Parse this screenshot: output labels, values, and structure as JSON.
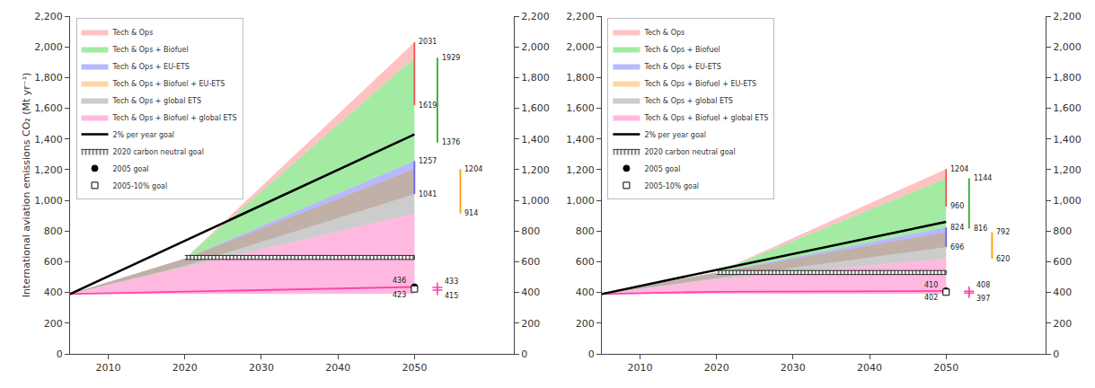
{
  "chart_data": [
    {
      "type": "area",
      "ylabel": "International aviation emissions CO₂ (Mt yr⁻¹)",
      "xlim": [
        2005,
        2063
      ],
      "xticks": [
        2010,
        2020,
        2030,
        2040,
        2050
      ],
      "ylim": [
        0,
        2200
      ],
      "yticks": [
        0,
        200,
        400,
        600,
        800,
        {
          "value": 1000,
          "label": "1,000"
        },
        {
          "value": 1200,
          "label": "1,200"
        },
        {
          "value": 1400,
          "label": "1,400"
        },
        {
          "value": 1600,
          "label": "1,600"
        },
        {
          "value": 1800,
          "label": "1,800"
        },
        {
          "value": 2000,
          "label": "2,000"
        },
        {
          "value": 2200,
          "label": "2,200"
        }
      ],
      "y2lim": [
        0,
        2200
      ],
      "y2ticks": [
        0,
        200,
        400,
        600,
        800,
        {
          "value": 1000,
          "label": "1,000"
        },
        {
          "value": 1200,
          "label": "1,200"
        },
        {
          "value": 1400,
          "label": "1,400"
        },
        {
          "value": 1600,
          "label": "1,600"
        },
        {
          "value": 1800,
          "label": "1,800"
        },
        {
          "value": 2000,
          "label": "2,000"
        },
        {
          "value": 2200,
          "label": "2,200"
        }
      ],
      "grid": false,
      "legend": "upper left",
      "series": [
        {
          "name": "Tech & Ops",
          "type": "band",
          "color": "#FF9999",
          "x": [
            2005,
            2020,
            2050
          ],
          "lower": [
            390,
            620,
            1929
          ],
          "values": [
            390,
            620,
            2031
          ]
        },
        {
          "name": "Tech & Ops + Biofuel",
          "type": "band",
          "color": "#66DD66",
          "x": [
            2005,
            2020,
            2050
          ],
          "lower": [
            390,
            620,
            1257
          ],
          "values": [
            390,
            620,
            1929
          ]
        },
        {
          "name": "Tech & Ops + EU-ETS",
          "type": "band",
          "color": "#8888FF",
          "x": [
            2005,
            2020,
            2050
          ],
          "lower": [
            390,
            574.75,
            1041
          ],
          "values": [
            390,
            620,
            1257
          ]
        },
        {
          "name": "Tech & Ops + Biofuel + EU-ETS",
          "type": "band",
          "color": "#FFBB66",
          "x": [
            2005,
            2020,
            2050
          ],
          "lower": [
            390,
            620,
            1204
          ],
          "values": [
            390,
            574.75,
            1041
          ]
        },
        {
          "name": "Tech & Ops + global ETS",
          "type": "band",
          "color": "#AAAAAA",
          "x": [
            2005,
            2020,
            2050
          ],
          "lower": [
            390,
            562.65,
            914
          ],
          "values": [
            390,
            620,
            1204
          ]
        },
        {
          "name": "Tech & Ops + Biofuel + global ETS",
          "type": "band",
          "color": "#FF88CC",
          "x": [
            2005,
            2020,
            2050
          ],
          "lower": [
            390,
            390,
            390
          ],
          "values": [
            390,
            562.65,
            914
          ]
        },
        {
          "type": "line",
          "color": "#FF44AA",
          "x": [
            2005,
            2020,
            2050
          ],
          "values": [
            390,
            405,
            436
          ]
        },
        {
          "name": "2% per year goal",
          "type": "line",
          "color": "black",
          "x": [
            2005,
            2050
          ],
          "values": [
            390,
            1430
          ]
        },
        {
          "name": "2020 carbon neutral goal",
          "type": "hatched_band",
          "color": "white",
          "x": [
            2020,
            2050
          ],
          "lower": [
            615,
            615
          ],
          "values": [
            641,
            641
          ]
        },
        {
          "type": "line",
          "color": "#EE5555",
          "x": [
            2050,
            2050
          ],
          "values": [
            1619,
            2031
          ],
          "data_labels": true
        },
        {
          "type": "line",
          "color": "#33AA33",
          "x": [
            2053,
            2053
          ],
          "values": [
            1376,
            1929
          ],
          "data_labels": true
        },
        {
          "type": "line",
          "color": "#6666EE",
          "x": [
            2050,
            2050
          ],
          "values": [
            1041,
            1257
          ],
          "data_labels": true
        },
        {
          "type": "line",
          "color": "#FF9900",
          "x": [
            2056,
            2056
          ],
          "values": [
            914,
            1204
          ],
          "data_labels": true
        },
        {
          "name": "2005 goal",
          "type": "scatter",
          "marker": "circle",
          "color": "black",
          "x": [
            2050
          ],
          "values": [
            436
          ],
          "data_labels": true
        },
        {
          "name": "2005-10% goal",
          "type": "scatter",
          "marker": "square",
          "color": "white",
          "x": [
            2050
          ],
          "values": [
            423
          ],
          "data_labels": true
        },
        {
          "type": "scatter",
          "marker": "plus",
          "color": "#FF44AA",
          "x": [
            2053,
            2053
          ],
          "values": [
            433,
            415
          ],
          "data_labels": true
        }
      ]
    },
    {
      "type": "area",
      "xlim": [
        2005,
        2063
      ],
      "xticks": [
        2010,
        2020,
        2030,
        2040,
        2050
      ],
      "ylim": [
        0,
        2200
      ],
      "yticks": [
        0,
        200,
        400,
        600,
        800,
        {
          "value": 1000,
          "label": "1,000"
        },
        {
          "value": 1200,
          "label": "1,200"
        },
        {
          "value": 1400,
          "label": "1,400"
        },
        {
          "value": 1600,
          "label": "1,600"
        },
        {
          "value": 1800,
          "label": "1,800"
        },
        {
          "value": 2000,
          "label": "2,000"
        },
        {
          "value": 2200,
          "label": "2,200"
        }
      ],
      "y2lim": [
        0,
        2200
      ],
      "y2ticks": [
        0,
        200,
        400,
        600,
        800,
        {
          "value": 1000,
          "label": "1,000"
        },
        {
          "value": 1200,
          "label": "1,200"
        },
        {
          "value": 1400,
          "label": "1,400"
        },
        {
          "value": 1600,
          "label": "1,600"
        },
        {
          "value": 1800,
          "label": "1,800"
        },
        {
          "value": 2000,
          "label": "2,000"
        },
        {
          "value": 2200,
          "label": "2,200"
        }
      ],
      "grid": false,
      "legend": "upper left",
      "series": [
        {
          "name": "Tech & Ops",
          "type": "band",
          "color": "#FF9999",
          "x": [
            2005,
            2020,
            2050
          ],
          "lower": [
            390,
            530,
            1144
          ],
          "values": [
            390,
            530,
            1204
          ]
        },
        {
          "name": "Tech & Ops + Biofuel",
          "type": "band",
          "color": "#66DD66",
          "x": [
            2005,
            2020,
            2050
          ],
          "lower": [
            390,
            530,
            824
          ],
          "values": [
            390,
            530,
            1144
          ]
        },
        {
          "name": "Tech & Ops + EU-ETS",
          "type": "band",
          "color": "#8888FF",
          "x": [
            2005,
            2020,
            2050
          ],
          "lower": [
            390,
            494,
            696
          ],
          "values": [
            390,
            530,
            824
          ]
        },
        {
          "name": "Tech & Ops + Biofuel + EU-ETS",
          "type": "band",
          "color": "#FFBB66",
          "x": [
            2005,
            2020,
            2050
          ],
          "lower": [
            390,
            530,
            792
          ],
          "values": [
            390,
            494,
            696
          ]
        },
        {
          "name": "Tech & Ops + global ETS",
          "type": "band",
          "color": "#AAAAAA",
          "x": [
            2005,
            2020,
            2050
          ],
          "lower": [
            390,
            483.6,
            620
          ],
          "values": [
            390,
            530,
            792
          ]
        },
        {
          "name": "Tech & Ops + Biofuel + global ETS",
          "type": "band",
          "color": "#FF88CC",
          "x": [
            2005,
            2020,
            2050
          ],
          "lower": [
            390,
            390,
            390
          ],
          "values": [
            390,
            483.6,
            620
          ]
        },
        {
          "type": "line",
          "color": "#FF44AA",
          "x": [
            2005,
            2020,
            2050
          ],
          "values": [
            390,
            405,
            410
          ]
        },
        {
          "name": "2% per year goal",
          "type": "line",
          "color": "black",
          "x": [
            2005,
            2050
          ],
          "values": [
            390,
            860
          ]
        },
        {
          "name": "2020 carbon neutral goal",
          "type": "hatched_band",
          "color": "white",
          "x": [
            2020,
            2050
          ],
          "lower": [
            517,
            517
          ],
          "values": [
            543,
            543
          ]
        },
        {
          "type": "line",
          "color": "#EE5555",
          "x": [
            2050,
            2050
          ],
          "values": [
            960,
            1204
          ],
          "data_labels": true
        },
        {
          "type": "line",
          "color": "#33AA33",
          "x": [
            2053,
            2053
          ],
          "values": [
            816,
            1144
          ],
          "data_labels": true
        },
        {
          "type": "line",
          "color": "#6666EE",
          "x": [
            2050,
            2050
          ],
          "values": [
            696,
            824
          ],
          "data_labels": true
        },
        {
          "type": "line",
          "color": "#FF9900",
          "x": [
            2056,
            2056
          ],
          "values": [
            620,
            792
          ],
          "data_labels": true
        },
        {
          "name": "2005 goal",
          "type": "scatter",
          "marker": "circle",
          "color": "black",
          "x": [
            2050
          ],
          "values": [
            410
          ],
          "data_labels": true
        },
        {
          "name": "2005-10% goal",
          "type": "scatter",
          "marker": "square",
          "color": "white",
          "x": [
            2050
          ],
          "values": [
            402
          ],
          "data_labels": true
        },
        {
          "type": "scatter",
          "marker": "plus",
          "color": "#FF44AA",
          "x": [
            2053,
            2053
          ],
          "values": [
            408,
            397
          ],
          "data_labels": true
        }
      ]
    }
  ]
}
